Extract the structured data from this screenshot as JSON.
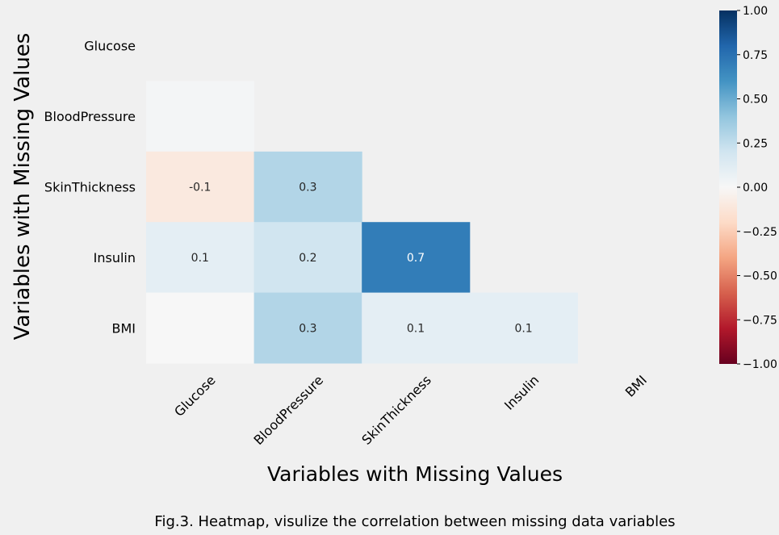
{
  "chart_data": {
    "type": "heatmap",
    "xlabel": "Variables with Missing Values",
    "ylabel": "Variables with Missing Values",
    "x_categories": [
      "Glucose",
      "BloodPressure",
      "SkinThickness",
      "Insulin",
      "BMI"
    ],
    "y_categories": [
      "Glucose",
      "BloodPressure",
      "SkinThickness",
      "Insulin",
      "BMI"
    ],
    "mask": "upper-triangle-and-diagonal",
    "cells": [
      {
        "row": "BloodPressure",
        "col": "Glucose",
        "value": 0.02,
        "label": ""
      },
      {
        "row": "SkinThickness",
        "col": "Glucose",
        "value": -0.1,
        "label": "-0.1"
      },
      {
        "row": "SkinThickness",
        "col": "BloodPressure",
        "value": 0.3,
        "label": "0.3"
      },
      {
        "row": "Insulin",
        "col": "Glucose",
        "value": 0.1,
        "label": "0.1"
      },
      {
        "row": "Insulin",
        "col": "BloodPressure",
        "value": 0.2,
        "label": "0.2"
      },
      {
        "row": "Insulin",
        "col": "SkinThickness",
        "value": 0.7,
        "label": "0.7"
      },
      {
        "row": "BMI",
        "col": "Glucose",
        "value": 0.0,
        "label": ""
      },
      {
        "row": "BMI",
        "col": "BloodPressure",
        "value": 0.3,
        "label": "0.3"
      },
      {
        "row": "BMI",
        "col": "SkinThickness",
        "value": 0.1,
        "label": "0.1"
      },
      {
        "row": "BMI",
        "col": "Insulin",
        "value": 0.1,
        "label": "0.1"
      }
    ],
    "colormap": "RdBu",
    "colorbar": {
      "range": [
        -1.0,
        1.0
      ],
      "ticks": [
        1.0,
        0.75,
        0.5,
        0.25,
        0.0,
        -0.25,
        -0.5,
        -0.75,
        -1.0
      ],
      "tick_labels": [
        "1.00",
        "0.75",
        "0.50",
        "0.25",
        "0.00",
        "−0.25",
        "−0.50",
        "−0.75",
        "−1.00"
      ]
    }
  },
  "caption": "Fig.3. Heatmap, visulize the correlation between missing data variables",
  "colors": {
    "background": "#f0f0f0",
    "rdbu": [
      "#67001f",
      "#b2182b",
      "#d6604d",
      "#f4a582",
      "#fddbc7",
      "#f7f7f7",
      "#d1e5f0",
      "#92c5de",
      "#4393c3",
      "#2166ac",
      "#053061"
    ]
  }
}
